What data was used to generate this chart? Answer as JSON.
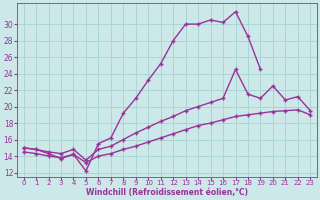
{
  "bg_color": "#cce8e8",
  "grid_color": "#aad4d4",
  "line_color": "#993399",
  "xlabel": "Windchill (Refroidissement éolien,°C)",
  "ylim": [
    11.5,
    32.5
  ],
  "xlim": [
    -0.5,
    23.5
  ],
  "yticks": [
    12,
    14,
    16,
    18,
    20,
    22,
    24,
    26,
    28,
    30
  ],
  "xticks": [
    0,
    1,
    2,
    3,
    4,
    5,
    6,
    7,
    8,
    9,
    10,
    11,
    12,
    13,
    14,
    15,
    16,
    17,
    18,
    19,
    20,
    21,
    22,
    23
  ],
  "curve1_x": [
    0,
    1,
    2,
    3,
    4,
    5,
    6,
    7,
    8,
    9,
    10,
    11,
    12,
    13,
    14,
    15,
    16,
    17,
    18,
    19
  ],
  "curve1_y": [
    15.0,
    14.8,
    14.3,
    13.7,
    14.2,
    12.2,
    15.5,
    16.2,
    19.2,
    21.0,
    23.2,
    25.2,
    28.0,
    30.0,
    30.0,
    30.5,
    30.2,
    31.5,
    28.5,
    24.5
  ],
  "curve2_x": [
    0,
    1,
    2,
    3,
    4,
    5,
    6,
    7,
    8,
    9,
    10,
    11,
    12,
    13,
    14,
    15,
    16,
    17,
    18,
    19,
    20,
    21,
    22,
    23
  ],
  "curve2_y": [
    15.0,
    14.8,
    14.5,
    14.3,
    14.8,
    13.5,
    14.8,
    15.2,
    16.0,
    16.8,
    17.5,
    18.2,
    18.8,
    19.5,
    20.0,
    20.5,
    21.0,
    24.5,
    21.5,
    21.0,
    22.5,
    20.8,
    21.2,
    19.5
  ],
  "curve3_x": [
    0,
    1,
    2,
    3,
    4,
    5,
    6,
    7,
    8,
    9,
    10,
    11,
    12,
    13,
    14,
    15,
    16,
    17,
    18,
    19,
    20,
    21,
    22,
    23
  ],
  "curve3_y": [
    14.5,
    14.3,
    14.0,
    13.8,
    14.2,
    13.2,
    14.0,
    14.3,
    14.8,
    15.2,
    15.7,
    16.2,
    16.7,
    17.2,
    17.7,
    18.0,
    18.4,
    18.8,
    19.0,
    19.2,
    19.4,
    19.5,
    19.6,
    19.0
  ]
}
